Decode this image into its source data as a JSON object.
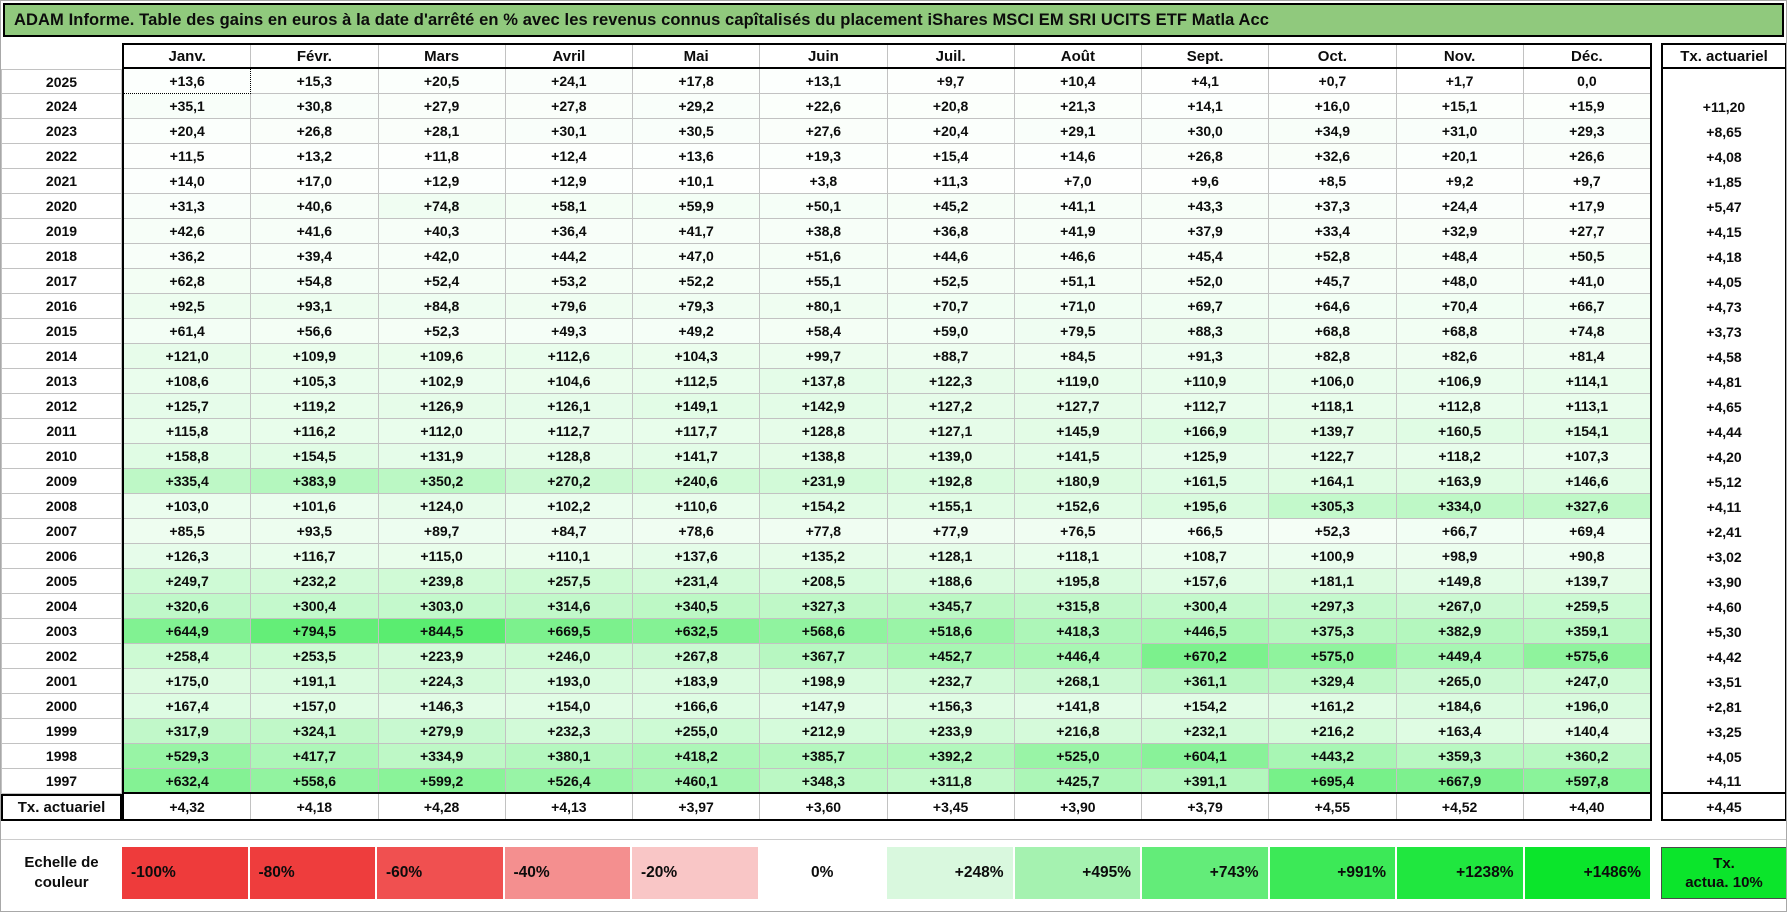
{
  "title": "ADAM Informe. Table des gains en euros à la date d'arrêté en % avec les revenus connus capîtalisés du placement iShares MSCI EM SRI UCITS ETF Matla Acc",
  "months": [
    "Janv.",
    "Févr.",
    "Mars",
    "Avril",
    "Mai",
    "Juin",
    "Juil.",
    "Août",
    "Sept.",
    "Oct.",
    "Nov.",
    "Déc."
  ],
  "right_header": "Tx. actuariel",
  "rows": [
    {
      "year": "2025",
      "values": [
        "+13,6",
        "+15,3",
        "+20,5",
        "+24,1",
        "+17,8",
        "+13,1",
        "+9,7",
        "+10,4",
        "+4,1",
        "+0,7",
        "+1,7",
        "0,0"
      ],
      "tx": ""
    },
    {
      "year": "2024",
      "values": [
        "+35,1",
        "+30,8",
        "+27,9",
        "+27,8",
        "+29,2",
        "+22,6",
        "+20,8",
        "+21,3",
        "+14,1",
        "+16,0",
        "+15,1",
        "+15,9"
      ],
      "tx": "+11,20"
    },
    {
      "year": "2023",
      "values": [
        "+20,4",
        "+26,8",
        "+28,1",
        "+30,1",
        "+30,5",
        "+27,6",
        "+20,4",
        "+29,1",
        "+30,0",
        "+34,9",
        "+31,0",
        "+29,3"
      ],
      "tx": "+8,65"
    },
    {
      "year": "2022",
      "values": [
        "+11,5",
        "+13,2",
        "+11,8",
        "+12,4",
        "+13,6",
        "+19,3",
        "+15,4",
        "+14,6",
        "+26,8",
        "+32,6",
        "+20,1",
        "+26,6"
      ],
      "tx": "+4,08"
    },
    {
      "year": "2021",
      "values": [
        "+14,0",
        "+17,0",
        "+12,9",
        "+12,9",
        "+10,1",
        "+3,8",
        "+11,3",
        "+7,0",
        "+9,6",
        "+8,5",
        "+9,2",
        "+9,7"
      ],
      "tx": "+1,85"
    },
    {
      "year": "2020",
      "values": [
        "+31,3",
        "+40,6",
        "+74,8",
        "+58,1",
        "+59,9",
        "+50,1",
        "+45,2",
        "+41,1",
        "+43,3",
        "+37,3",
        "+24,4",
        "+17,9"
      ],
      "tx": "+5,47"
    },
    {
      "year": "2019",
      "values": [
        "+42,6",
        "+41,6",
        "+40,3",
        "+36,4",
        "+41,7",
        "+38,8",
        "+36,8",
        "+41,9",
        "+37,9",
        "+33,4",
        "+32,9",
        "+27,7"
      ],
      "tx": "+4,15"
    },
    {
      "year": "2018",
      "values": [
        "+36,2",
        "+39,4",
        "+42,0",
        "+44,2",
        "+47,0",
        "+51,6",
        "+44,6",
        "+46,6",
        "+45,4",
        "+52,8",
        "+48,4",
        "+50,5"
      ],
      "tx": "+4,18"
    },
    {
      "year": "2017",
      "values": [
        "+62,8",
        "+54,8",
        "+52,4",
        "+53,2",
        "+52,2",
        "+55,1",
        "+52,5",
        "+51,1",
        "+52,0",
        "+45,7",
        "+48,0",
        "+41,0"
      ],
      "tx": "+4,05"
    },
    {
      "year": "2016",
      "values": [
        "+92,5",
        "+93,1",
        "+84,8",
        "+79,6",
        "+79,3",
        "+80,1",
        "+70,7",
        "+71,0",
        "+69,7",
        "+64,6",
        "+70,4",
        "+66,7"
      ],
      "tx": "+4,73"
    },
    {
      "year": "2015",
      "values": [
        "+61,4",
        "+56,6",
        "+52,3",
        "+49,3",
        "+49,2",
        "+58,4",
        "+59,0",
        "+79,5",
        "+88,3",
        "+68,8",
        "+68,8",
        "+74,8"
      ],
      "tx": "+3,73"
    },
    {
      "year": "2014",
      "values": [
        "+121,0",
        "+109,9",
        "+109,6",
        "+112,6",
        "+104,3",
        "+99,7",
        "+88,7",
        "+84,5",
        "+91,3",
        "+82,8",
        "+82,6",
        "+81,4"
      ],
      "tx": "+4,58"
    },
    {
      "year": "2013",
      "values": [
        "+108,6",
        "+105,3",
        "+102,9",
        "+104,6",
        "+112,5",
        "+137,8",
        "+122,3",
        "+119,0",
        "+110,9",
        "+106,0",
        "+106,9",
        "+114,1"
      ],
      "tx": "+4,81"
    },
    {
      "year": "2012",
      "values": [
        "+125,7",
        "+119,2",
        "+126,9",
        "+126,1",
        "+149,1",
        "+142,9",
        "+127,2",
        "+127,7",
        "+112,7",
        "+118,1",
        "+112,8",
        "+113,1"
      ],
      "tx": "+4,65"
    },
    {
      "year": "2011",
      "values": [
        "+115,8",
        "+116,2",
        "+112,0",
        "+112,7",
        "+117,7",
        "+128,8",
        "+127,1",
        "+145,9",
        "+166,9",
        "+139,7",
        "+160,5",
        "+154,1"
      ],
      "tx": "+4,44"
    },
    {
      "year": "2010",
      "values": [
        "+158,8",
        "+154,5",
        "+131,9",
        "+128,8",
        "+141,7",
        "+138,8",
        "+139,0",
        "+141,5",
        "+125,9",
        "+122,7",
        "+118,2",
        "+107,3"
      ],
      "tx": "+4,20"
    },
    {
      "year": "2009",
      "values": [
        "+335,4",
        "+383,9",
        "+350,2",
        "+270,2",
        "+240,6",
        "+231,9",
        "+192,8",
        "+180,9",
        "+161,5",
        "+164,1",
        "+163,9",
        "+146,6"
      ],
      "tx": "+5,12"
    },
    {
      "year": "2008",
      "values": [
        "+103,0",
        "+101,6",
        "+124,0",
        "+102,2",
        "+110,6",
        "+154,2",
        "+155,1",
        "+152,6",
        "+195,6",
        "+305,3",
        "+334,0",
        "+327,6"
      ],
      "tx": "+4,11"
    },
    {
      "year": "2007",
      "values": [
        "+85,5",
        "+93,5",
        "+89,7",
        "+84,7",
        "+78,6",
        "+77,8",
        "+77,9",
        "+76,5",
        "+66,5",
        "+52,3",
        "+66,7",
        "+69,4"
      ],
      "tx": "+2,41"
    },
    {
      "year": "2006",
      "values": [
        "+126,3",
        "+116,7",
        "+115,0",
        "+110,1",
        "+137,6",
        "+135,2",
        "+128,1",
        "+118,1",
        "+108,7",
        "+100,9",
        "+98,9",
        "+90,8"
      ],
      "tx": "+3,02"
    },
    {
      "year": "2005",
      "values": [
        "+249,7",
        "+232,2",
        "+239,8",
        "+257,5",
        "+231,4",
        "+208,5",
        "+188,6",
        "+195,8",
        "+157,6",
        "+181,1",
        "+149,8",
        "+139,7"
      ],
      "tx": "+3,90"
    },
    {
      "year": "2004",
      "values": [
        "+320,6",
        "+300,4",
        "+303,0",
        "+314,6",
        "+340,5",
        "+327,3",
        "+345,7",
        "+315,8",
        "+300,4",
        "+297,3",
        "+267,0",
        "+259,5"
      ],
      "tx": "+4,60"
    },
    {
      "year": "2003",
      "values": [
        "+644,9",
        "+794,5",
        "+844,5",
        "+669,5",
        "+632,5",
        "+568,6",
        "+518,6",
        "+418,3",
        "+446,5",
        "+375,3",
        "+382,9",
        "+359,1"
      ],
      "tx": "+5,30"
    },
    {
      "year": "2002",
      "values": [
        "+258,4",
        "+253,5",
        "+223,9",
        "+246,0",
        "+267,8",
        "+367,7",
        "+452,7",
        "+446,4",
        "+670,2",
        "+575,0",
        "+449,4",
        "+575,6"
      ],
      "tx": "+4,42"
    },
    {
      "year": "2001",
      "values": [
        "+175,0",
        "+191,1",
        "+224,3",
        "+193,0",
        "+183,9",
        "+198,9",
        "+232,7",
        "+268,1",
        "+361,1",
        "+329,4",
        "+265,0",
        "+247,0"
      ],
      "tx": "+3,51"
    },
    {
      "year": "2000",
      "values": [
        "+167,4",
        "+157,0",
        "+146,3",
        "+154,0",
        "+166,6",
        "+147,9",
        "+156,3",
        "+141,8",
        "+154,2",
        "+161,2",
        "+184,6",
        "+196,0"
      ],
      "tx": "+2,81"
    },
    {
      "year": "1999",
      "values": [
        "+317,9",
        "+324,1",
        "+279,9",
        "+232,3",
        "+255,0",
        "+212,9",
        "+233,9",
        "+216,8",
        "+232,1",
        "+216,2",
        "+163,4",
        "+140,4"
      ],
      "tx": "+3,25"
    },
    {
      "year": "1998",
      "values": [
        "+529,3",
        "+417,7",
        "+334,9",
        "+380,1",
        "+418,2",
        "+385,7",
        "+392,2",
        "+525,0",
        "+604,1",
        "+443,2",
        "+359,3",
        "+360,2"
      ],
      "tx": "+4,05"
    },
    {
      "year": "1997",
      "values": [
        "+632,4",
        "+558,6",
        "+599,2",
        "+526,4",
        "+460,1",
        "+348,3",
        "+311,8",
        "+425,7",
        "+391,1",
        "+695,4",
        "+667,9",
        "+597,8"
      ],
      "tx": "+4,11"
    }
  ],
  "bottom_row": {
    "label": "Tx. actuariel",
    "values": [
      "+4,32",
      "+4,18",
      "+4,28",
      "+4,13",
      "+3,97",
      "+3,60",
      "+3,45",
      "+3,90",
      "+3,79",
      "+4,55",
      "+4,52",
      "+4,40"
    ],
    "tx": "+4,45"
  },
  "selection": {
    "year": "2025",
    "month_index": 0
  },
  "legend": {
    "label": "Echelle de couleur",
    "items": [
      {
        "label": "-100%",
        "color": "#ee3b3b",
        "align": "left"
      },
      {
        "label": "-80%",
        "color": "#ee3d3d",
        "align": "left"
      },
      {
        "label": "-60%",
        "color": "#f05050",
        "align": "left"
      },
      {
        "label": "-40%",
        "color": "#f48f8f",
        "align": "left"
      },
      {
        "label": "-20%",
        "color": "#f9c6c6",
        "align": "left"
      },
      {
        "label": "0%",
        "color": "#ffffff",
        "align": "center"
      },
      {
        "label": "+248%",
        "color": "#d9f8de",
        "align": "right"
      },
      {
        "label": "+495%",
        "color": "#a5f2b0",
        "align": "right"
      },
      {
        "label": "+743%",
        "color": "#63ec79",
        "align": "right"
      },
      {
        "label": "+991%",
        "color": "#3ce957",
        "align": "right"
      },
      {
        "label": "+1238%",
        "color": "#20e73f",
        "align": "right"
      },
      {
        "label": "+1486%",
        "color": "#0be52b",
        "align": "right"
      }
    ],
    "tx_box": {
      "line1": "Tx.",
      "line2": "actua. 10%",
      "color": "#0be52b"
    }
  },
  "colors": {
    "title_bg": "#90c97d",
    "grid_line": "#c2c2c2",
    "thick_border": "#000000",
    "cell_green_max": "#0be52b",
    "cell_scale_saturation_value": 1250
  }
}
